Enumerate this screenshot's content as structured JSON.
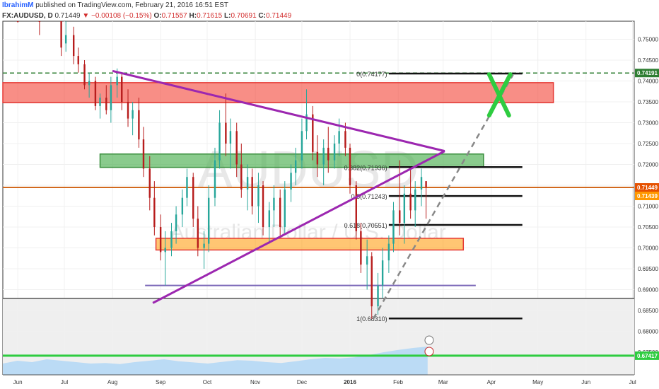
{
  "header": {
    "author": "IbrahimM",
    "published": "published on TradingView.com, February 21, 2016 16:51 EST",
    "symbol": "FX:AUDUSD, D",
    "last": "0.71449",
    "change": "−0.00108 (−0.15%)",
    "o_label": "O:",
    "o": "0.71557",
    "h_label": "H:",
    "h": "0.71615",
    "l_label": "L:",
    "l": "0.70691",
    "c_label": "C:",
    "c": "0.71449"
  },
  "watermark": {
    "symbol": "AUDUSD",
    "name": "Australian Dollar / U.S. Dollar"
  },
  "colors": {
    "up": "#26a69a",
    "down": "#b71c1c",
    "trend": "#9c27b0",
    "resistance_zone": "#f44336",
    "mid_zone": "#4caf50",
    "support_zone": "#ff9800",
    "target_x": "#2ecc40",
    "volume": "#90caf9"
  },
  "chart_data": {
    "type": "candlestick",
    "x_tick_labels": [
      "Jun",
      "Jul",
      "Aug",
      "Sep",
      "Oct",
      "Nov",
      "Dec",
      "2016",
      "Feb",
      "Mar",
      "Apr",
      "May",
      "Jun",
      "Jul"
    ],
    "y_tick_labels": [
      "0.75000",
      "0.74500",
      "0.74000",
      "0.73500",
      "0.73000",
      "0.72500",
      "0.72000",
      "0.71500",
      "0.71000",
      "0.70500",
      "0.70000",
      "0.69500",
      "0.69000",
      "0.68500",
      "0.68000",
      "0.67500"
    ],
    "ylim": [
      0.6735,
      0.7545
    ],
    "price_badges": [
      {
        "label": "0.74191",
        "value": 0.74191,
        "color": "#2e7d32"
      },
      {
        "label": "0.71449",
        "value": 0.71449,
        "color": "#e65100"
      },
      {
        "label": "0.71439",
        "value": 0.71439,
        "color": "#ff9800"
      },
      {
        "label": "0.67417",
        "value": 0.67417,
        "color": "#2ecc40"
      }
    ],
    "fib_levels": [
      {
        "label": "0(0.74177)",
        "value": 0.74177
      },
      {
        "label": "0.382(0.71936)",
        "value": 0.71936
      },
      {
        "label": "0.5(0.71243)",
        "value": 0.71243
      },
      {
        "label": "0.618(0.70551)",
        "value": 0.70551
      },
      {
        "label": "1(0.68310)",
        "value": 0.6831
      }
    ],
    "zones": [
      {
        "name": "resistance",
        "top": 0.7396,
        "bottom": 0.7348
      },
      {
        "name": "middle",
        "top": 0.7225,
        "bottom": 0.7193
      },
      {
        "name": "support",
        "top": 0.7023,
        "bottom": 0.6995
      }
    ],
    "horizontal_lines": [
      {
        "name": "dashed-top",
        "value": 0.74191
      },
      {
        "name": "current-price",
        "value": 0.71449
      },
      {
        "name": "purple-support",
        "value": 0.691
      },
      {
        "name": "dark-support",
        "value": 0.6879
      },
      {
        "name": "green-bottom",
        "value": 0.67417
      }
    ],
    "trendlines": [
      {
        "name": "upper",
        "from": [
          "2015-08-01",
          0.7424
        ],
        "to": [
          "2016-03-02",
          0.7232
        ]
      },
      {
        "name": "lower",
        "from": [
          "2015-08-27",
          0.6868
        ],
        "to": [
          "2016-03-02",
          0.7232
        ]
      },
      {
        "name": "projection",
        "from": [
          "2016-01-16",
          0.683
        ],
        "to": [
          "2016-04-15",
          0.7415
        ]
      }
    ],
    "candles": [
      [
        "2015-06-01",
        0.76,
        0.761,
        0.754,
        0.756
      ],
      [
        "2015-06-15",
        0.756,
        0.762,
        0.751,
        0.755
      ],
      [
        "2015-06-29",
        0.755,
        0.757,
        0.746,
        0.748
      ],
      [
        "2015-07-02",
        0.749,
        0.755,
        0.747,
        0.751
      ],
      [
        "2015-07-07",
        0.751,
        0.753,
        0.744,
        0.746
      ],
      [
        "2015-07-10",
        0.746,
        0.748,
        0.742,
        0.744
      ],
      [
        "2015-07-14",
        0.744,
        0.745,
        0.738,
        0.739
      ],
      [
        "2015-07-17",
        0.739,
        0.742,
        0.736,
        0.74
      ],
      [
        "2015-07-21",
        0.74,
        0.741,
        0.733,
        0.734
      ],
      [
        "2015-07-24",
        0.734,
        0.737,
        0.731,
        0.736
      ],
      [
        "2015-07-28",
        0.736,
        0.739,
        0.732,
        0.733
      ],
      [
        "2015-07-31",
        0.733,
        0.741,
        0.73,
        0.739
      ],
      [
        "2015-08-04",
        0.739,
        0.743,
        0.736,
        0.741
      ],
      [
        "2015-08-07",
        0.741,
        0.742,
        0.733,
        0.735
      ],
      [
        "2015-08-11",
        0.735,
        0.738,
        0.729,
        0.731
      ],
      [
        "2015-08-14",
        0.731,
        0.735,
        0.727,
        0.733
      ],
      [
        "2015-08-18",
        0.733,
        0.736,
        0.724,
        0.726
      ],
      [
        "2015-08-21",
        0.726,
        0.729,
        0.717,
        0.719
      ],
      [
        "2015-08-25",
        0.719,
        0.722,
        0.709,
        0.712
      ],
      [
        "2015-08-28",
        0.712,
        0.716,
        0.703,
        0.705
      ],
      [
        "2015-09-01",
        0.705,
        0.708,
        0.697,
        0.699
      ],
      [
        "2015-09-04",
        0.699,
        0.704,
        0.691,
        0.7
      ],
      [
        "2015-09-08",
        0.7,
        0.706,
        0.698,
        0.704
      ],
      [
        "2015-09-11",
        0.704,
        0.71,
        0.701,
        0.708
      ],
      [
        "2015-09-15",
        0.708,
        0.714,
        0.705,
        0.712
      ],
      [
        "2015-09-18",
        0.712,
        0.719,
        0.71,
        0.717
      ],
      [
        "2015-09-22",
        0.717,
        0.718,
        0.705,
        0.707
      ],
      [
        "2015-09-25",
        0.707,
        0.71,
        0.698,
        0.7
      ],
      [
        "2015-09-29",
        0.7,
        0.704,
        0.695,
        0.701
      ],
      [
        "2015-10-02",
        0.701,
        0.715,
        0.699,
        0.712
      ],
      [
        "2015-10-06",
        0.712,
        0.724,
        0.71,
        0.721
      ],
      [
        "2015-10-09",
        0.721,
        0.733,
        0.719,
        0.73
      ],
      [
        "2015-10-13",
        0.73,
        0.737,
        0.722,
        0.725
      ],
      [
        "2015-10-16",
        0.725,
        0.731,
        0.719,
        0.728
      ],
      [
        "2015-10-20",
        0.728,
        0.73,
        0.717,
        0.72
      ],
      [
        "2015-10-23",
        0.72,
        0.725,
        0.712,
        0.714
      ],
      [
        "2015-10-27",
        0.714,
        0.72,
        0.709,
        0.717
      ],
      [
        "2015-10-30",
        0.717,
        0.719,
        0.708,
        0.71
      ],
      [
        "2015-11-03",
        0.71,
        0.718,
        0.706,
        0.715
      ],
      [
        "2015-11-06",
        0.715,
        0.716,
        0.703,
        0.705
      ],
      [
        "2015-11-10",
        0.705,
        0.711,
        0.701,
        0.709
      ],
      [
        "2015-11-13",
        0.709,
        0.715,
        0.705,
        0.712
      ],
      [
        "2015-11-17",
        0.712,
        0.714,
        0.703,
        0.705
      ],
      [
        "2015-11-20",
        0.705,
        0.716,
        0.703,
        0.714
      ],
      [
        "2015-11-24",
        0.714,
        0.72,
        0.711,
        0.718
      ],
      [
        "2015-11-27",
        0.718,
        0.724,
        0.715,
        0.721
      ],
      [
        "2015-12-01",
        0.721,
        0.731,
        0.719,
        0.728
      ],
      [
        "2015-12-04",
        0.728,
        0.738,
        0.726,
        0.732
      ],
      [
        "2015-12-08",
        0.732,
        0.734,
        0.721,
        0.723
      ],
      [
        "2015-12-11",
        0.723,
        0.727,
        0.717,
        0.72
      ],
      [
        "2015-12-15",
        0.72,
        0.726,
        0.715,
        0.724
      ],
      [
        "2015-12-18",
        0.724,
        0.729,
        0.718,
        0.721
      ],
      [
        "2015-12-22",
        0.721,
        0.727,
        0.719,
        0.725
      ],
      [
        "2015-12-25",
        0.725,
        0.731,
        0.722,
        0.728
      ],
      [
        "2015-12-29",
        0.728,
        0.73,
        0.722,
        0.724
      ],
      [
        "2016-01-01",
        0.724,
        0.725,
        0.713,
        0.715
      ],
      [
        "2016-01-05",
        0.715,
        0.716,
        0.702,
        0.704
      ],
      [
        "2016-01-08",
        0.704,
        0.706,
        0.694,
        0.696
      ],
      [
        "2016-01-12",
        0.696,
        0.702,
        0.69,
        0.698
      ],
      [
        "2016-01-15",
        0.698,
        0.699,
        0.683,
        0.686
      ],
      [
        "2016-01-19",
        0.686,
        0.694,
        0.684,
        0.691
      ],
      [
        "2016-01-22",
        0.691,
        0.7,
        0.688,
        0.697
      ],
      [
        "2016-01-26",
        0.697,
        0.703,
        0.694,
        0.701
      ],
      [
        "2016-01-29",
        0.701,
        0.711,
        0.699,
        0.709
      ],
      [
        "2016-02-02",
        0.709,
        0.721,
        0.703,
        0.706
      ],
      [
        "2016-02-05",
        0.706,
        0.715,
        0.701,
        0.713
      ],
      [
        "2016-02-09",
        0.713,
        0.719,
        0.707,
        0.709
      ],
      [
        "2016-02-12",
        0.709,
        0.716,
        0.705,
        0.714
      ],
      [
        "2016-02-16",
        0.714,
        0.719,
        0.71,
        0.717
      ],
      [
        "2016-02-19",
        0.716,
        0.716,
        0.707,
        0.7145
      ]
    ]
  }
}
